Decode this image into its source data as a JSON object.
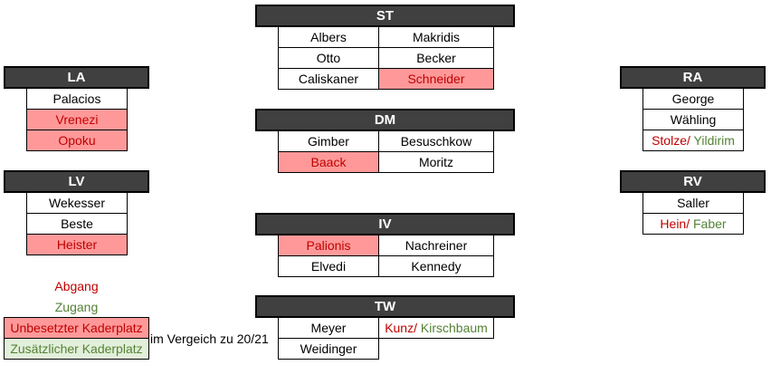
{
  "colors": {
    "header_bg": "#404040",
    "empty_fill": "#ff9999",
    "abgang": "#c00000",
    "zugang": "#548235",
    "extra_fill": "#e2efda"
  },
  "positions": [
    {
      "id": "ST",
      "title": "ST",
      "rows": [
        [
          [
            {
              "t": "Albers"
            }
          ],
          [
            {
              "t": "Makridis"
            }
          ]
        ],
        [
          [
            {
              "t": "Otto"
            }
          ],
          [
            {
              "t": "Becker"
            }
          ]
        ],
        [
          [
            {
              "t": "Caliskaner"
            }
          ],
          [
            {
              "t": "Schneider",
              "empty": true
            }
          ]
        ]
      ]
    },
    {
      "id": "DM",
      "title": "DM",
      "rows": [
        [
          [
            {
              "t": "Gimber"
            }
          ],
          [
            {
              "t": "Besuschkow"
            }
          ]
        ],
        [
          [
            {
              "t": "Baack",
              "empty": true
            }
          ],
          [
            {
              "t": "Moritz"
            }
          ]
        ]
      ]
    },
    {
      "id": "IV",
      "title": "IV",
      "rows": [
        [
          [
            {
              "t": "Palionis",
              "empty": true
            }
          ],
          [
            {
              "t": "Nachreiner"
            }
          ]
        ],
        [
          [
            {
              "t": "Elvedi"
            }
          ],
          [
            {
              "t": "Kennedy"
            }
          ]
        ]
      ]
    },
    {
      "id": "TW",
      "title": "TW",
      "rows": [
        [
          [
            {
              "t": "Meyer"
            }
          ],
          [
            {
              "t": "Kunz/",
              "s": "ab"
            },
            {
              "t": " Kirschbaum",
              "s": "zu"
            }
          ]
        ],
        [
          [
            {
              "t": "Weidinger"
            }
          ],
          null
        ]
      ]
    },
    {
      "id": "LA",
      "title": "LA",
      "rows": [
        [
          [
            {
              "t": "Palacios"
            }
          ]
        ],
        [
          [
            {
              "t": "Vrenezi",
              "empty": true
            }
          ]
        ],
        [
          [
            {
              "t": "Opoku",
              "empty": true
            }
          ]
        ]
      ]
    },
    {
      "id": "LV",
      "title": "LV",
      "rows": [
        [
          [
            {
              "t": "Wekesser"
            }
          ]
        ],
        [
          [
            {
              "t": "Beste"
            }
          ]
        ],
        [
          [
            {
              "t": "Heister",
              "empty": true
            }
          ]
        ]
      ]
    },
    {
      "id": "RA",
      "title": "RA",
      "rows": [
        [
          [
            {
              "t": "George"
            }
          ]
        ],
        [
          [
            {
              "t": "Wähling"
            }
          ]
        ],
        [
          [
            {
              "t": "Stolze/",
              "s": "ab"
            },
            {
              "t": " Yildirim",
              "s": "zu"
            }
          ]
        ]
      ]
    },
    {
      "id": "RV",
      "title": "RV",
      "rows": [
        [
          [
            {
              "t": "Saller"
            }
          ]
        ],
        [
          [
            {
              "t": "Hein/",
              "s": "ab"
            },
            {
              "t": " Faber",
              "s": "zu"
            }
          ]
        ]
      ]
    }
  ],
  "legend": {
    "abgang": "Abgang",
    "zugang": "Zugang",
    "empty": "Unbesetzter Kaderplatz",
    "extra": "Zusätzlicher Kaderplatz",
    "note": "im Vergeich zu 20/21"
  }
}
